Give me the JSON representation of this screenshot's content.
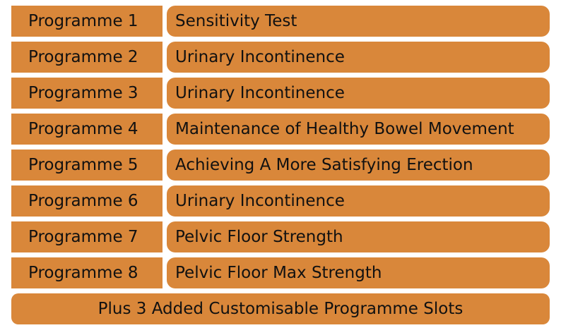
{
  "programmes": [
    {
      "label": "Programme 1",
      "description": "Sensitivity Test"
    },
    {
      "label": "Programme 2",
      "description": "Urinary Incontinence"
    },
    {
      "label": "Programme 3",
      "description": "Urinary Incontinence"
    },
    {
      "label": "Programme 4",
      "description": "Maintenance of Healthy Bowel Movement"
    },
    {
      "label": "Programme 5",
      "description": "Achieving A More Satisfying Erection"
    },
    {
      "label": "Programme 6",
      "description": "Urinary Incontinence"
    },
    {
      "label": "Programme 7",
      "description": "Pelvic Floor Strength"
    },
    {
      "label": "Programme 8",
      "description": "Pelvic Floor Max Strength"
    }
  ],
  "footer": "Plus 3 Added Customisable Programme Slots",
  "colors": {
    "cell_background": "#d9873a",
    "text": "#111111"
  }
}
